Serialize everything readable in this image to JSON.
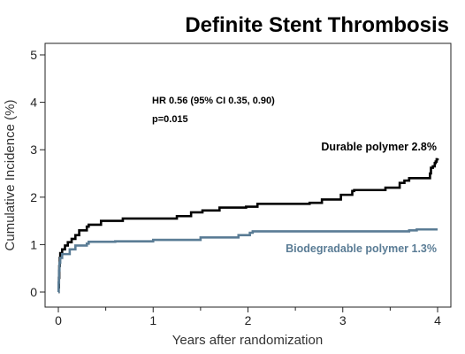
{
  "chart_data": {
    "type": "line",
    "title": "Definite Stent Thrombosis",
    "xlabel": "Years after randomization",
    "ylabel": "Cumulative Incidence (%)",
    "xlim": [
      0,
      4
    ],
    "ylim": [
      0,
      5
    ],
    "xticks": [
      "0",
      "1",
      "2",
      "3",
      "4"
    ],
    "yticks": [
      "0",
      "1",
      "2",
      "3",
      "4",
      "5"
    ],
    "grid": false,
    "annotations": {
      "hr": "HR 0.56 (95% CI 0.35, 0.90)",
      "p": "p=0.015"
    },
    "series": [
      {
        "name": "Durable polymer 2.8%",
        "color": "#000000",
        "step": true,
        "points": [
          [
            0,
            0
          ],
          [
            0.003,
            0.1
          ],
          [
            0.006,
            0.3
          ],
          [
            0.01,
            0.55
          ],
          [
            0.015,
            0.72
          ],
          [
            0.02,
            0.82
          ],
          [
            0.04,
            0.9
          ],
          [
            0.07,
            0.98
          ],
          [
            0.1,
            1.05
          ],
          [
            0.14,
            1.12
          ],
          [
            0.18,
            1.2
          ],
          [
            0.22,
            1.3
          ],
          [
            0.3,
            1.38
          ],
          [
            0.32,
            1.42
          ],
          [
            0.45,
            1.5
          ],
          [
            0.68,
            1.55
          ],
          [
            1.25,
            1.6
          ],
          [
            1.4,
            1.68
          ],
          [
            1.52,
            1.72
          ],
          [
            1.7,
            1.78
          ],
          [
            1.98,
            1.8
          ],
          [
            2.1,
            1.86
          ],
          [
            2.65,
            1.88
          ],
          [
            2.78,
            1.95
          ],
          [
            2.98,
            2.05
          ],
          [
            3.1,
            2.13
          ],
          [
            3.12,
            2.15
          ],
          [
            3.45,
            2.2
          ],
          [
            3.6,
            2.3
          ],
          [
            3.65,
            2.35
          ],
          [
            3.7,
            2.4
          ],
          [
            3.92,
            2.5
          ],
          [
            3.93,
            2.62
          ],
          [
            3.95,
            2.65
          ],
          [
            3.97,
            2.72
          ],
          [
            3.98,
            2.75
          ],
          [
            3.99,
            2.8
          ],
          [
            4.0,
            2.82
          ]
        ]
      },
      {
        "name": "Biodegradable polymer 1.3%",
        "color": "#5a7c95",
        "step": true,
        "points": [
          [
            0,
            0
          ],
          [
            0.003,
            0.2
          ],
          [
            0.007,
            0.45
          ],
          [
            0.012,
            0.62
          ],
          [
            0.02,
            0.72
          ],
          [
            0.04,
            0.8
          ],
          [
            0.12,
            0.9
          ],
          [
            0.18,
            0.98
          ],
          [
            0.3,
            1.02
          ],
          [
            0.32,
            1.06
          ],
          [
            0.6,
            1.07
          ],
          [
            1.0,
            1.1
          ],
          [
            1.5,
            1.15
          ],
          [
            1.9,
            1.2
          ],
          [
            2.02,
            1.25
          ],
          [
            2.05,
            1.28
          ],
          [
            3.7,
            1.3
          ],
          [
            3.78,
            1.32
          ],
          [
            4.0,
            1.32
          ]
        ]
      }
    ]
  }
}
